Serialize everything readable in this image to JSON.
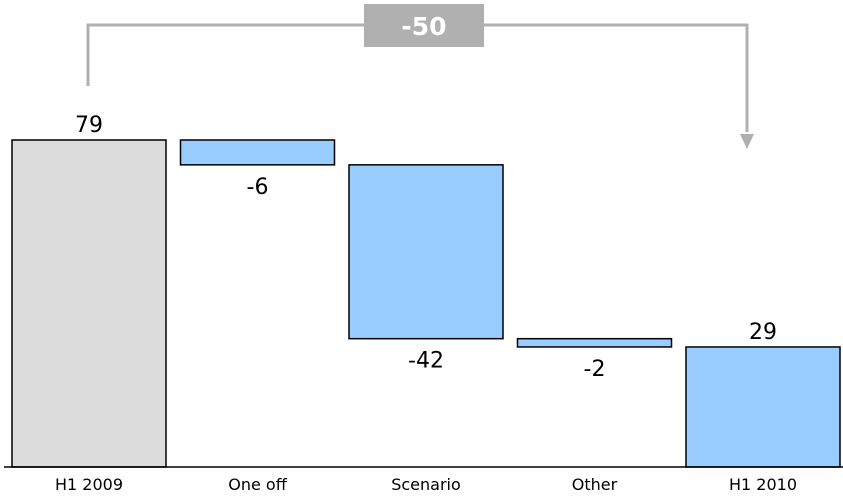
{
  "chart_data": {
    "type": "bar",
    "subtype": "waterfall",
    "title": "",
    "xlabel": "",
    "ylabel": "",
    "categories": [
      "H1 2009",
      "One off",
      "Scenario",
      "Other",
      "H1 2010"
    ],
    "values": [
      79,
      -6,
      -42,
      -2,
      29
    ],
    "value_labels": [
      "79",
      "-6",
      "-42",
      "-2",
      "29"
    ],
    "bar_kinds": [
      "total",
      "delta",
      "delta",
      "delta",
      "total"
    ],
    "ylim": [
      0,
      79
    ],
    "grid": false,
    "legend": "none",
    "total_change": {
      "from": "H1 2009",
      "to": "H1 2010",
      "value": -50,
      "label": "-50"
    },
    "colors": {
      "start_bar": "#dcdcdc",
      "change_bar": "#99ccff",
      "bar_stroke": "#000000",
      "connector": "#b0b0b0",
      "total_badge": "#b0b0b0"
    }
  }
}
